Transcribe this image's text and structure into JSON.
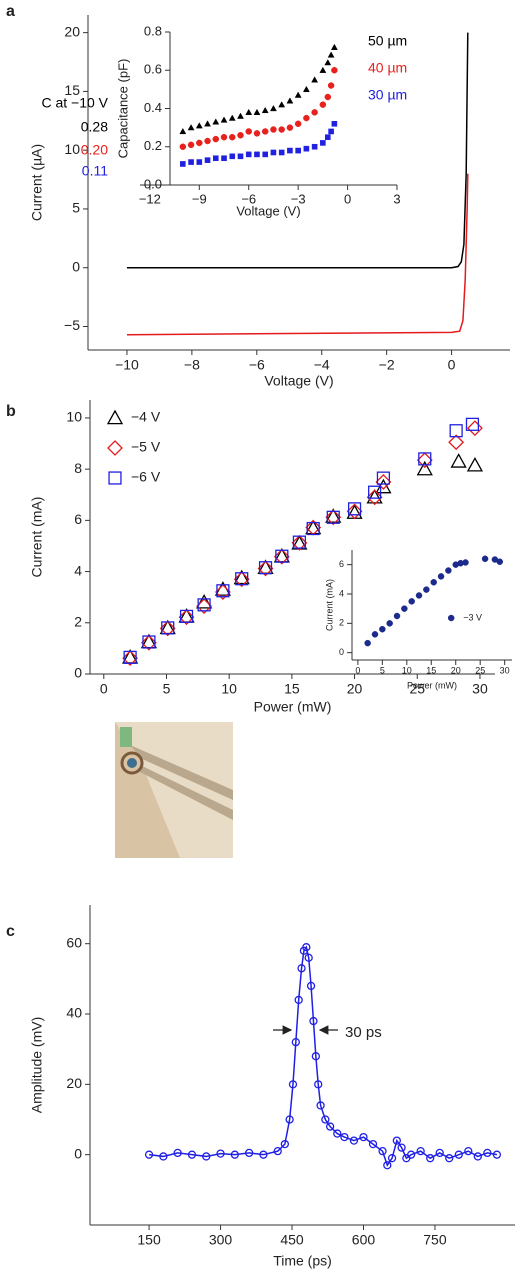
{
  "chart_data": [
    {
      "type": "line",
      "panel_label": "a",
      "x_label": "Voltage (V)",
      "y_label": "Current (µA)",
      "xlim": [
        -11.2,
        1.8
      ],
      "ylim": [
        -7,
        21.5
      ],
      "xticks": [
        {
          "value": -10,
          "label": "−10"
        },
        {
          "value": -8,
          "label": "−8"
        },
        {
          "value": -6,
          "label": "−6"
        },
        {
          "value": -4,
          "label": "−4"
        },
        {
          "value": -2,
          "label": "−2"
        },
        0
      ],
      "yticks": [
        {
          "value": -5,
          "label": "−5"
        },
        0,
        5,
        10,
        15,
        20
      ],
      "series": [
        {
          "color": "#000000",
          "x": [
            -10,
            0,
            0.2,
            0.3,
            0.38,
            0.45,
            0.5
          ],
          "values": [
            0,
            0,
            0.1,
            0.5,
            2,
            8,
            20
          ]
        },
        {
          "color": "#e41a1c",
          "x": [
            -10,
            -5,
            0,
            0.25,
            0.35,
            0.42,
            0.48,
            0.5
          ],
          "values": [
            -5.7,
            -5.6,
            -5.5,
            -5.4,
            -4.5,
            -1,
            5,
            8
          ]
        }
      ]
    },
    {
      "type": "scatter",
      "x_label": "Voltage (V)",
      "y_label": "Capacitance (pF)",
      "xlim": [
        -12.6,
        3
      ],
      "ylim": [
        0,
        0.8
      ],
      "xticks": [
        {
          "value": -12,
          "label": "−12"
        },
        {
          "value": -9,
          "label": "−9"
        },
        {
          "value": -6,
          "label": "−6"
        },
        {
          "value": -3,
          "label": "−3"
        },
        0,
        3
      ],
      "yticks": [
        {
          "value": 0,
          "label": "0.0"
        },
        0.2,
        0.4,
        0.6,
        0.8
      ],
      "annotations": [
        "C at −10 V",
        "0.28",
        "0.20",
        "0.11",
        "50 µm",
        "40 µm",
        "30 µm"
      ],
      "x": [
        -10,
        -9.5,
        -9,
        -8.5,
        -8,
        -7.5,
        -7,
        -6.5,
        -6,
        -5.5,
        -5,
        -4.5,
        -4,
        -3.5,
        -3,
        -2.5,
        -2,
        -1.5,
        -1.2,
        -1,
        -0.8
      ],
      "series": [
        {
          "name": "50 µm",
          "color": "#000000",
          "marker": "triangle",
          "filled": true,
          "values": [
            0.28,
            0.3,
            0.31,
            0.32,
            0.33,
            0.34,
            0.35,
            0.36,
            0.38,
            0.38,
            0.39,
            0.4,
            0.42,
            0.44,
            0.47,
            0.5,
            0.55,
            0.6,
            0.64,
            0.68,
            0.72
          ]
        },
        {
          "name": "40 µm",
          "color": "#e8211d",
          "marker": "circle",
          "filled": true,
          "values": [
            0.2,
            0.21,
            0.22,
            0.23,
            0.24,
            0.25,
            0.25,
            0.26,
            0.28,
            0.27,
            0.28,
            0.29,
            0.29,
            0.3,
            0.32,
            0.35,
            0.38,
            0.42,
            0.46,
            0.52,
            0.6
          ]
        },
        {
          "name": "30 µm",
          "color": "#2020e0",
          "marker": "square",
          "filled": true,
          "values": [
            0.11,
            0.12,
            0.12,
            0.13,
            0.14,
            0.14,
            0.15,
            0.15,
            0.16,
            0.16,
            0.16,
            0.17,
            0.17,
            0.18,
            0.18,
            0.19,
            0.2,
            0.22,
            0.25,
            0.28,
            0.32
          ]
        }
      ]
    },
    {
      "type": "scatter",
      "panel_label": "b",
      "x_label": "Power (mW)",
      "y_label": "Current (mA)",
      "xlim": [
        -1.1,
        31.2
      ],
      "ylim": [
        0,
        10.7
      ],
      "xticks": [
        0,
        5,
        10,
        15,
        20,
        25,
        30
      ],
      "yticks": [
        0,
        2,
        4,
        6,
        8,
        10
      ],
      "legend": "upper left",
      "series": [
        {
          "name": "−4 V",
          "color": "#000000",
          "marker": "triangle",
          "filled": false,
          "x": [
            2.1,
            3.6,
            5.1,
            6.6,
            8.0,
            9.5,
            11.0,
            12.9,
            14.2,
            15.6,
            16.7,
            18.3,
            20.0,
            21.6,
            22.3,
            25.6,
            28.3,
            29.6
          ],
          "values": [
            0.65,
            1.25,
            1.8,
            2.25,
            2.8,
            3.3,
            3.75,
            4.15,
            4.6,
            5.1,
            5.7,
            6.15,
            6.3,
            6.9,
            7.3,
            8.0,
            8.3,
            8.15
          ]
        },
        {
          "name": "−5 V",
          "color": "#e41a1c",
          "marker": "diamond",
          "filled": false,
          "x": [
            2.1,
            3.6,
            5.1,
            6.6,
            8.0,
            9.5,
            11.0,
            12.9,
            14.2,
            15.6,
            16.7,
            18.3,
            20.0,
            21.6,
            22.3,
            25.6,
            28.1,
            29.6
          ],
          "values": [
            0.62,
            1.22,
            1.78,
            2.22,
            2.65,
            3.2,
            3.7,
            4.12,
            4.58,
            5.12,
            5.72,
            6.12,
            6.35,
            6.9,
            7.5,
            8.35,
            9.05,
            9.6
          ]
        },
        {
          "name": "−6 V",
          "color": "#2020e0",
          "marker": "square",
          "filled": false,
          "x": [
            2.1,
            3.6,
            5.1,
            6.6,
            8.0,
            9.5,
            11.0,
            12.9,
            14.2,
            15.6,
            16.7,
            18.3,
            20.0,
            21.6,
            22.3,
            25.6,
            28.1,
            29.4
          ],
          "values": [
            0.65,
            1.25,
            1.8,
            2.25,
            2.7,
            3.25,
            3.72,
            4.15,
            4.6,
            5.15,
            5.68,
            6.12,
            6.45,
            7.1,
            7.65,
            8.4,
            9.5,
            9.75
          ]
        }
      ]
    },
    {
      "type": "scatter",
      "x_label": "Power (mW)",
      "y_label": "Current (mA)",
      "xlim": [
        -1.2,
        31.5
      ],
      "ylim": [
        -0.5,
        7
      ],
      "xticks": [
        0,
        5,
        10,
        15,
        20,
        25,
        30
      ],
      "yticks": [
        0,
        2,
        4,
        6
      ],
      "legend": "lower right",
      "x": [
        2,
        3.5,
        5,
        6.5,
        8,
        9.5,
        11,
        12.5,
        14,
        15.5,
        17,
        18.5,
        20,
        21,
        22,
        26,
        28,
        29
      ],
      "series": [
        {
          "name": "−3 V",
          "color": "#1c2a8c",
          "marker": "circle",
          "filled": true,
          "values": [
            0.65,
            1.25,
            1.6,
            2.0,
            2.5,
            3.0,
            3.5,
            3.9,
            4.3,
            4.8,
            5.2,
            5.6,
            6.0,
            6.1,
            6.15,
            6.4,
            6.35,
            6.2
          ]
        }
      ]
    },
    {
      "type": "line",
      "panel_label": "c",
      "x_label": "Time (ps)",
      "y_label": "Amplitude (mV)",
      "xlim": [
        26,
        918
      ],
      "ylim": [
        -20,
        71
      ],
      "xticks": [
        150,
        300,
        450,
        600,
        750
      ],
      "yticks": [
        0,
        20,
        40,
        60
      ],
      "annotations": [
        "30 ps"
      ],
      "x": [
        150,
        180,
        210,
        240,
        270,
        300,
        330,
        360,
        390,
        420,
        435,
        445,
        452,
        458,
        464,
        470,
        475,
        480,
        485,
        490,
        495,
        500,
        505,
        510,
        520,
        530,
        545,
        560,
        580,
        600,
        620,
        640,
        650,
        660,
        670,
        680,
        690,
        700,
        720,
        740,
        760,
        780,
        800,
        820,
        840,
        860,
        880
      ],
      "series": [
        {
          "color": "#1f1fe6",
          "marker": "circle",
          "filled": false,
          "values": [
            0,
            -0.5,
            0.5,
            0,
            -0.5,
            0.3,
            0,
            0.5,
            0,
            1,
            3,
            10,
            20,
            32,
            44,
            53,
            58,
            59,
            56,
            48,
            38,
            28,
            20,
            14,
            10,
            8,
            6,
            5,
            4,
            5,
            3,
            1,
            -3,
            -1,
            4,
            2,
            -1,
            0,
            1,
            -1,
            0.5,
            -1,
            0,
            1,
            -0.5,
            0.5,
            0
          ]
        }
      ]
    }
  ]
}
